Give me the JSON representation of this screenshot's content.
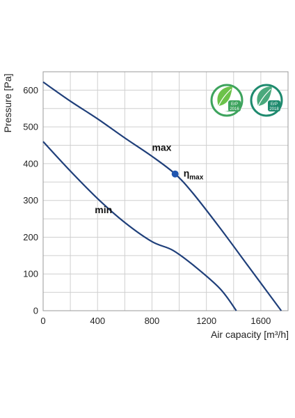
{
  "chart_data": {
    "type": "line",
    "xlabel": "Air capacity [m³/h]",
    "ylabel": "Pressure [Pa]",
    "xlim": [
      0,
      1800
    ],
    "ylim": [
      0,
      650
    ],
    "x_ticks": [
      "0",
      "400",
      "800",
      "1200",
      "1600"
    ],
    "y_ticks": [
      "0",
      "100",
      "200",
      "300",
      "400",
      "500",
      "600"
    ],
    "grid": true,
    "series": [
      {
        "name": "max",
        "points": [
          [
            0,
            622
          ],
          [
            200,
            570
          ],
          [
            400,
            522
          ],
          [
            600,
            470
          ],
          [
            800,
            420
          ],
          [
            970,
            372
          ],
          [
            1100,
            320
          ],
          [
            1300,
            225
          ],
          [
            1500,
            125
          ],
          [
            1650,
            50
          ],
          [
            1750,
            0
          ]
        ],
        "color": "#1f3f7a"
      },
      {
        "name": "min",
        "points": [
          [
            0,
            460
          ],
          [
            200,
            380
          ],
          [
            400,
            305
          ],
          [
            600,
            240
          ],
          [
            800,
            188
          ],
          [
            950,
            165
          ],
          [
            1100,
            125
          ],
          [
            1300,
            60
          ],
          [
            1420,
            0
          ]
        ],
        "color": "#1f3f7a"
      }
    ],
    "annotations": [
      {
        "label": "η",
        "sub": "max",
        "x": 970,
        "y": 372
      }
    ]
  },
  "badges": [
    {
      "line1": "ErP",
      "line2": "2016",
      "color": "#3da35d"
    },
    {
      "line1": "ErP",
      "line2": "2018",
      "color": "#1e8a6e"
    }
  ]
}
